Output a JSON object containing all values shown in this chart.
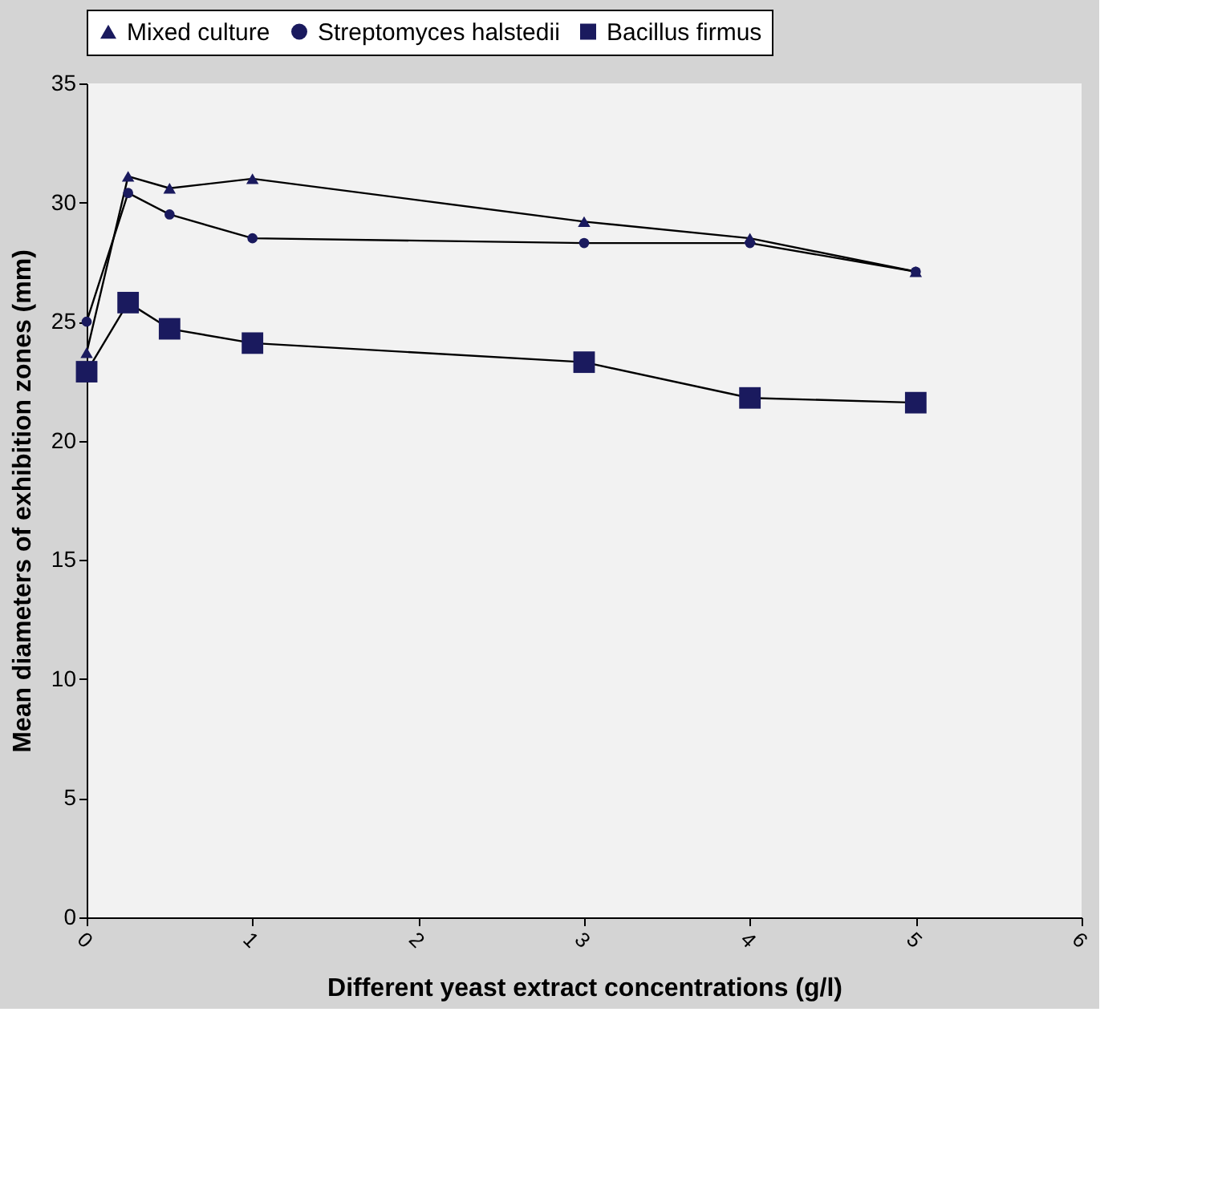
{
  "chart_data": {
    "type": "line",
    "xlabel": "Different yeast extract concentrations (g/l)",
    "ylabel": "Mean diameters of exhibition zones (mm)",
    "x": [
      0,
      0.25,
      0.5,
      1,
      3,
      4,
      5
    ],
    "series": [
      {
        "name": "Mixed culture",
        "color": "#1a1a5e",
        "marker": "triangle",
        "values": [
          23.7,
          31.1,
          30.6,
          31.0,
          29.2,
          28.5,
          27.1
        ]
      },
      {
        "name": "Streptomyces halstedii",
        "color": "#1a1a5e",
        "marker": "circle",
        "values": [
          25.0,
          30.4,
          29.5,
          28.5,
          28.3,
          28.3,
          27.1
        ]
      },
      {
        "name": "Bacillus firmus",
        "color": "#1a1a5e",
        "marker": "square",
        "values": [
          22.9,
          25.8,
          24.7,
          24.1,
          23.3,
          21.8,
          21.6
        ]
      }
    ],
    "xlim": [
      0,
      6
    ],
    "xticks": [
      0,
      1,
      2,
      3,
      4,
      5,
      6
    ],
    "ylim": [
      0,
      35
    ],
    "yticks": [
      0,
      5,
      10,
      15,
      20,
      25,
      30,
      35
    ],
    "grid": false,
    "legend": "top",
    "line_style": "solid"
  }
}
